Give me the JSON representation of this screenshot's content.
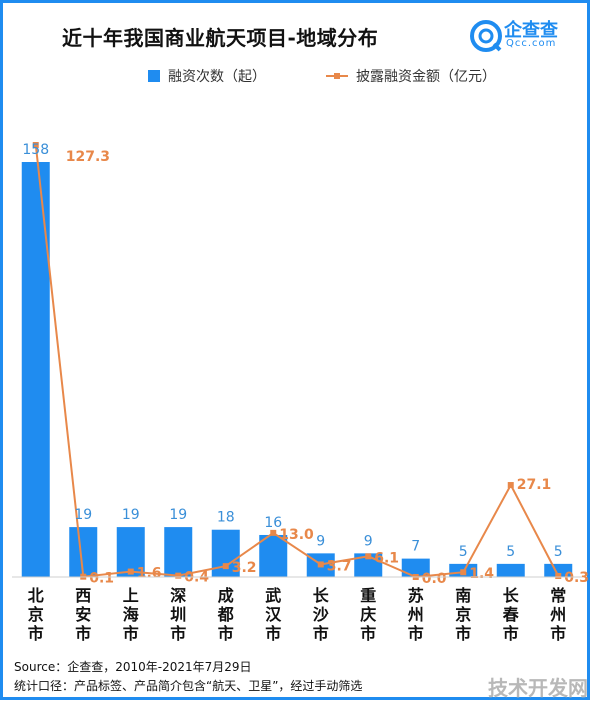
{
  "header": {
    "title": "近十年我国商业航天项目-地域分布",
    "logo_text": "企查查",
    "logo_sub": "Qcc.com"
  },
  "legend": {
    "bar_label": "融资次数（起）",
    "line_label": "披露融资金额（亿元）"
  },
  "colors": {
    "bar": "#1f8cf0",
    "line": "#e8884a",
    "bar_label": "#3a8fd8",
    "line_label": "#e8884a"
  },
  "chart_data": {
    "type": "bar",
    "categories": [
      "北京市",
      "西安市",
      "上海市",
      "深圳市",
      "成都市",
      "武汉市",
      "长沙市",
      "重庆市",
      "苏州市",
      "南京市",
      "长春市",
      "常州市"
    ],
    "series": [
      {
        "name": "融资次数（起）",
        "type": "bar",
        "values": [
          158,
          19,
          19,
          19,
          18,
          16,
          9,
          9,
          7,
          5,
          5,
          5
        ],
        "labels": [
          "158",
          "19",
          "19",
          "19",
          "18",
          "16",
          "9",
          "9",
          "7",
          "5",
          "5",
          "5"
        ]
      },
      {
        "name": "披露融资金额（亿元）",
        "type": "line",
        "values": [
          127.3,
          0.1,
          1.6,
          0.4,
          3.2,
          13.0,
          3.7,
          6.1,
          0.0,
          1.4,
          27.1,
          0.3
        ],
        "labels": [
          "127.3",
          "0.1",
          "1.6",
          "0.4",
          "3.2",
          "13.0",
          "3.7",
          "6.1",
          "0.0",
          "1.4",
          "27.1",
          "0.3"
        ]
      }
    ],
    "y_left_range": [
      0,
      170
    ],
    "y_right_range": [
      0,
      135
    ],
    "grid": false,
    "legend_position": "top"
  },
  "footer": {
    "source": "Source：企查查，2010年-2021年7月29日",
    "method": "统计口径：产品标签、产品简介包含“航天、卫星”，经过手动筛选"
  },
  "watermark": "技术开发网"
}
